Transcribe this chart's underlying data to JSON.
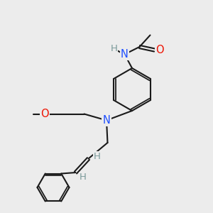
{
  "bg_color": "#ececec",
  "bond_color": "#1a1a1a",
  "N_color": "#1e4fff",
  "O_color": "#ee1100",
  "H_color": "#7a9a9a",
  "line_width": 1.5,
  "font_size_atom": 10.5,
  "font_size_h": 9.5,
  "figsize": [
    3.0,
    3.0
  ],
  "dpi": 100,
  "xlim": [
    0,
    10
  ],
  "ylim": [
    0,
    10
  ]
}
